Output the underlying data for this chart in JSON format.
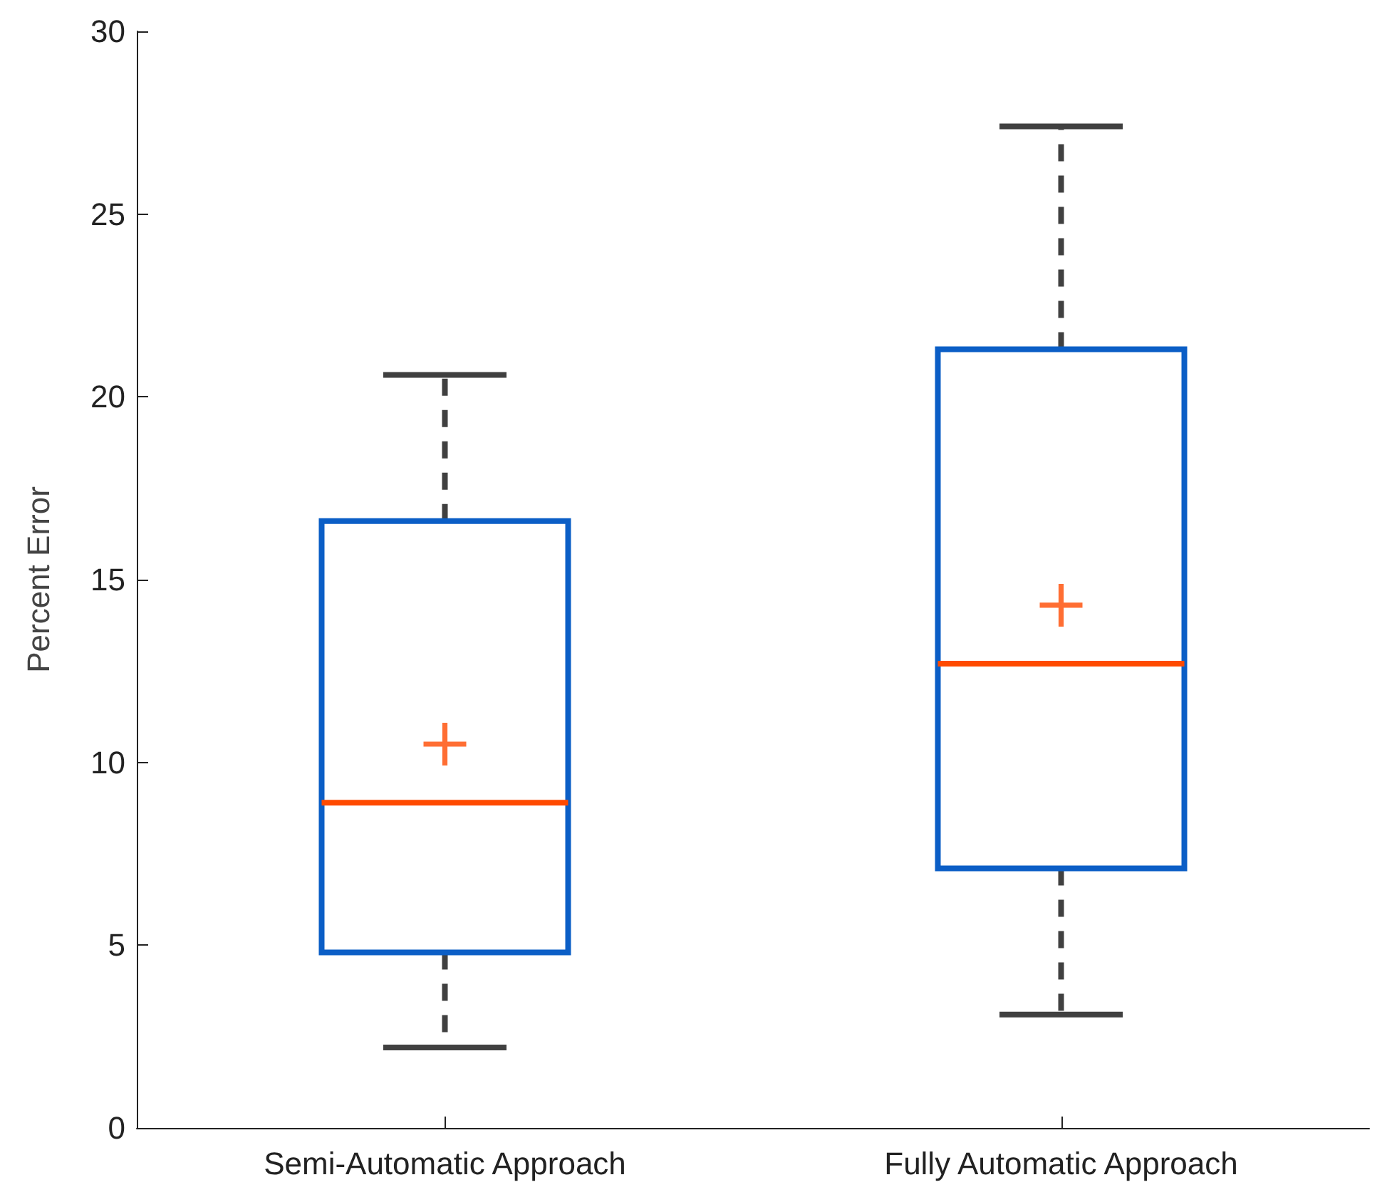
{
  "chart_data": {
    "type": "box",
    "ylabel": "Percent Error",
    "categories": [
      "Semi-Automatic Approach",
      "Fully Automatic Approach"
    ],
    "color": "#0b5ec6",
    "boxes": [
      {
        "low": 2.2,
        "q1": 4.8,
        "median": 8.9,
        "q3": 16.6,
        "high": 20.6,
        "mean": 10.5
      },
      {
        "low": 3.1,
        "q1": 7.1,
        "median": 12.7,
        "q3": 21.3,
        "high": 27.4,
        "mean": 14.3
      }
    ],
    "marker": "cross",
    "ylim": [
      0,
      30
    ],
    "yticks": [
      0,
      5,
      10,
      15,
      20,
      25,
      30
    ],
    "grid": false
  }
}
